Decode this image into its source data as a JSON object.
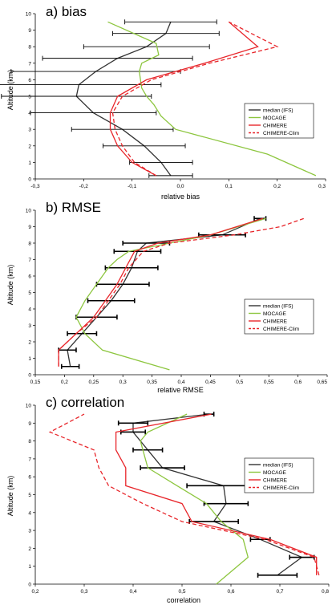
{
  "chart_data": [
    {
      "type": "line",
      "title": "a) bias",
      "xlabel": "relative bias",
      "ylabel": "Altitude (km)",
      "xlim": [
        -0.3,
        0.3
      ],
      "ylim": [
        0,
        10
      ],
      "xticks": [
        -0.3,
        -0.2,
        -0.1,
        0.0,
        0.1,
        0.2,
        0.3
      ],
      "xtick_labels": [
        "-0,3",
        "-0,2",
        "-0,1",
        "0,0",
        "0,1",
        "0,2",
        "0,3"
      ],
      "yticks": [
        0,
        1,
        2,
        3,
        4,
        5,
        6,
        7,
        8,
        9,
        10
      ],
      "ytick_labels": [
        "0",
        "1",
        "2",
        "3",
        "4",
        "5",
        "6",
        "7",
        "8",
        "9",
        "10"
      ],
      "legend_position": "center-right",
      "series": [
        {
          "name": "median (IFS)",
          "color": "#333333",
          "dash": "none",
          "x": [
            -0.02,
            -0.04,
            -0.075,
            -0.12,
            -0.18,
            -0.215,
            -0.21,
            -0.175,
            -0.13,
            -0.07,
            -0.03,
            -0.02
          ],
          "y": [
            0.2,
            1.0,
            2.0,
            3.0,
            4.0,
            5.0,
            5.7,
            6.5,
            7.3,
            8.0,
            8.8,
            9.5
          ],
          "error": [
            0.045,
            0.065,
            0.085,
            0.105,
            0.13,
            0.155,
            0.17,
            0.175,
            0.155,
            0.13,
            0.11,
            0.095
          ]
        },
        {
          "name": "MOCAGE",
          "color": "#8dc63f",
          "dash": "none",
          "x": [
            0.28,
            0.18,
            -0.01,
            -0.04,
            -0.055,
            -0.07,
            -0.08,
            -0.085,
            -0.08,
            -0.045,
            -0.05,
            -0.15
          ],
          "y": [
            0.2,
            1.5,
            3.0,
            3.8,
            4.5,
            5.0,
            5.5,
            6.5,
            7.0,
            7.5,
            8.2,
            9.5
          ],
          "error": null
        },
        {
          "name": "CHIMERE",
          "color": "#e8262b",
          "dash": "none",
          "x": [
            -0.05,
            -0.1,
            -0.13,
            -0.145,
            -0.145,
            -0.13,
            -0.07,
            0.05,
            0.16,
            0.1
          ],
          "y": [
            0.2,
            1.0,
            2.0,
            3.0,
            4.0,
            5.0,
            6.0,
            7.0,
            8.0,
            9.5
          ],
          "error": null
        },
        {
          "name": "CHIMERE-Clim",
          "color": "#e8262b",
          "dash": "5,3",
          "x": [
            -0.05,
            -0.095,
            -0.12,
            -0.135,
            -0.14,
            -0.12,
            -0.06,
            0.06,
            0.2,
            0.1
          ],
          "y": [
            0.2,
            1.0,
            2.0,
            3.0,
            4.0,
            5.0,
            6.0,
            7.0,
            8.0,
            9.5
          ],
          "error": null
        }
      ]
    },
    {
      "type": "line",
      "title": "b) RMSE",
      "xlabel": "relative RMSE",
      "ylabel": "Altitude (km)",
      "xlim": [
        0.15,
        0.65
      ],
      "ylim": [
        0,
        10
      ],
      "xticks": [
        0.15,
        0.2,
        0.25,
        0.3,
        0.35,
        0.4,
        0.45,
        0.5,
        0.55,
        0.6,
        0.65
      ],
      "xtick_labels": [
        "0,15",
        "0,2",
        "0,25",
        "0,3",
        "0,35",
        "0,4",
        "0,45",
        "0,5",
        "0,55",
        "0,6",
        "0,65"
      ],
      "yticks": [
        0,
        1,
        2,
        3,
        4,
        5,
        6,
        7,
        8,
        9,
        10
      ],
      "ytick_labels": [
        "0",
        "1",
        "2",
        "3",
        "4",
        "5",
        "6",
        "7",
        "8",
        "9",
        "10"
      ],
      "legend_position": "center-right",
      "series": [
        {
          "name": "median (IFS)",
          "color": "#333333",
          "dash": "none",
          "x": [
            0.21,
            0.205,
            0.23,
            0.255,
            0.28,
            0.3,
            0.315,
            0.325,
            0.34,
            0.47,
            0.535
          ],
          "y": [
            0.5,
            1.5,
            2.5,
            3.5,
            4.5,
            5.5,
            6.5,
            7.5,
            8.0,
            8.5,
            9.5
          ],
          "error": [
            0.015,
            0.015,
            0.025,
            0.035,
            0.04,
            0.045,
            0.045,
            0.04,
            0.04,
            0.04,
            0.01
          ]
        },
        {
          "name": "MOCAGE",
          "color": "#8dc63f",
          "dash": "none",
          "x": [
            0.38,
            0.265,
            0.235,
            0.22,
            0.235,
            0.255,
            0.275,
            0.29,
            0.31,
            0.45,
            0.545
          ],
          "y": [
            0.3,
            1.5,
            2.5,
            3.5,
            4.5,
            5.5,
            6.5,
            7.0,
            7.5,
            8.5,
            9.5
          ],
          "error": null
        },
        {
          "name": "CHIMERE",
          "color": "#e8262b",
          "dash": "none",
          "x": [
            0.19,
            0.19,
            0.22,
            0.25,
            0.27,
            0.29,
            0.305,
            0.32,
            0.36,
            0.45,
            0.54
          ],
          "y": [
            0.5,
            1.5,
            2.5,
            3.5,
            4.5,
            5.5,
            6.5,
            7.5,
            8.0,
            8.5,
            9.5
          ],
          "error": null
        },
        {
          "name": "CHIMERE-Clim",
          "color": "#e8262b",
          "dash": "5,3",
          "x": [
            0.19,
            0.19,
            0.22,
            0.255,
            0.275,
            0.295,
            0.31,
            0.335,
            0.38,
            0.49,
            0.57,
            0.61
          ],
          "y": [
            0.5,
            1.5,
            2.5,
            3.5,
            4.5,
            5.5,
            6.5,
            7.5,
            8.0,
            8.5,
            9.0,
            9.5
          ],
          "error": null
        }
      ]
    },
    {
      "type": "line",
      "title": "c) correlation",
      "xlabel": "correlation",
      "ylabel": "Altitude (km)",
      "xlim": [
        0.2,
        0.8
      ],
      "ylim": [
        0,
        10
      ],
      "xticks": [
        0.2,
        0.3,
        0.4,
        0.5,
        0.6,
        0.7,
        0.8
      ],
      "xtick_labels": [
        "0,2",
        "0,3",
        "0,4",
        "0,5",
        "0,6",
        "0,7",
        "0,8"
      ],
      "yticks": [
        0,
        1,
        2,
        3,
        4,
        5,
        6,
        7,
        8,
        9,
        10
      ],
      "ytick_labels": [
        "0",
        "1",
        "2",
        "3",
        "4",
        "5",
        "6",
        "7",
        "8",
        "9",
        "10"
      ],
      "legend_position": "center-right",
      "series": [
        {
          "name": "median (IFS)",
          "color": "#333333",
          "dash": "none",
          "x": [
            0.695,
            0.745,
            0.66,
            0.565,
            0.59,
            0.585,
            0.46,
            0.43,
            0.4,
            0.4,
            0.555
          ],
          "y": [
            0.5,
            1.5,
            2.5,
            3.5,
            4.5,
            5.5,
            6.5,
            7.5,
            8.5,
            9.0,
            9.5
          ],
          "error": [
            0.04,
            0.025,
            0.02,
            0.05,
            0.045,
            0.075,
            0.045,
            0.03,
            0.025,
            0.03,
            0.01
          ]
        },
        {
          "name": "MOCAGE",
          "color": "#8dc63f",
          "dash": "none",
          "x": [
            0.57,
            0.635,
            0.625,
            0.58,
            0.55,
            0.49,
            0.43,
            0.42,
            0.415,
            0.43,
            0.51
          ],
          "y": [
            0.0,
            1.5,
            2.5,
            3.5,
            4.5,
            5.5,
            6.5,
            7.5,
            8.0,
            8.5,
            9.5
          ],
          "error": null
        },
        {
          "name": "CHIMERE",
          "color": "#e8262b",
          "dash": "none",
          "x": [
            0.775,
            0.775,
            0.68,
            0.52,
            0.5,
            0.385,
            0.385,
            0.365,
            0.365,
            0.56
          ],
          "y": [
            0.5,
            1.5,
            2.5,
            3.5,
            4.5,
            5.5,
            6.5,
            7.5,
            8.5,
            9.5
          ],
          "error": null
        },
        {
          "name": "CHIMERE-Clim",
          "color": "#e8262b",
          "dash": "5,3",
          "x": [
            0.78,
            0.77,
            0.67,
            0.5,
            0.42,
            0.35,
            0.33,
            0.32,
            0.23,
            0.3
          ],
          "y": [
            0.5,
            1.5,
            2.5,
            3.5,
            4.5,
            5.5,
            6.5,
            7.5,
            8.5,
            9.5
          ],
          "error": null
        }
      ]
    }
  ]
}
